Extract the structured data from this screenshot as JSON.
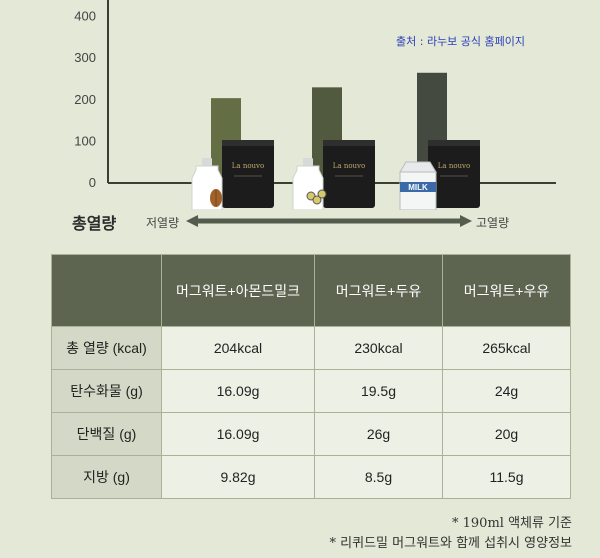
{
  "chart_data": {
    "type": "bar",
    "title": "총열량",
    "categories": [
      "머그워트+아몬드밀크",
      "머그워트+두유",
      "머그워트+우유"
    ],
    "values": [
      204,
      230,
      265
    ],
    "ylim": [
      0,
      440
    ],
    "yticks": [
      0,
      100,
      200,
      300,
      400
    ],
    "grid": false,
    "scale_low_label": "저열량",
    "scale_high_label": "고열량",
    "bar_colors": [
      "#646e44",
      "#515a3e",
      "#454a40"
    ],
    "product_brand": "La nouvo",
    "milk_carton_text": "MILK"
  },
  "source_note": "출처 : 라누보 공식 홈페이지",
  "table": {
    "headers": [
      "",
      "머그워트+아몬드밀크",
      "머그워트+두유",
      "머그워트+우유"
    ],
    "rows": [
      {
        "label": "총 열량 (kcal)",
        "values": [
          "204kcal",
          "230kcal",
          "265kcal"
        ]
      },
      {
        "label": "탄수화물 (g)",
        "values": [
          "16.09g",
          "19.5g",
          "24g"
        ]
      },
      {
        "label": "단백질 (g)",
        "values": [
          "16.09g",
          "26g",
          "20g"
        ]
      },
      {
        "label": "지방 (g)",
        "values": [
          "9.82g",
          "8.5g",
          "11.5g"
        ]
      }
    ]
  },
  "footnotes": [
    "* 190ml 액체류 기준",
    "* 리퀴드밀 머그워트와 함께 섭취시 영양정보"
  ]
}
